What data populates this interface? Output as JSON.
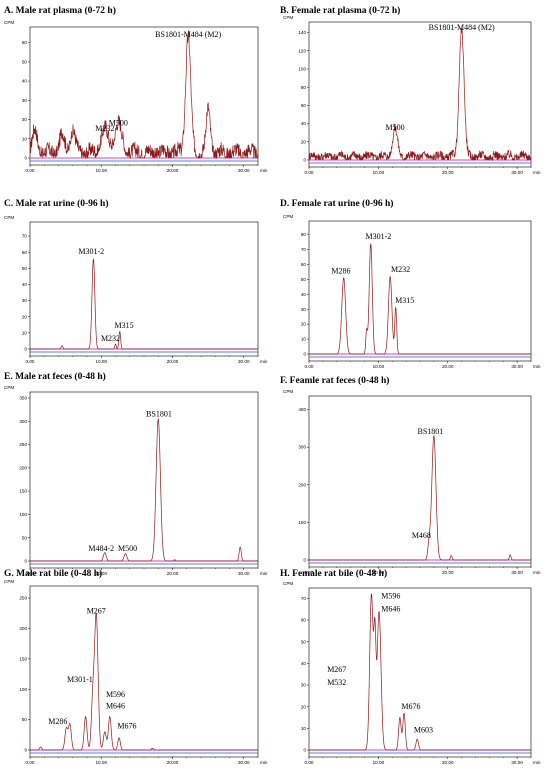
{
  "colors": {
    "trace": "#8b1a1a",
    "baseline_magenta": "#c000c0",
    "baseline_blue": "#3050c0",
    "axis": "#000000"
  },
  "chart_data": [
    {
      "type": "line",
      "title": "A. Male rat plasma (0-72 h)",
      "ylabel": "CPM",
      "xlabel": "min",
      "xlim": [
        0,
        32
      ],
      "ylim": [
        0,
        65
      ],
      "yticks": [
        0,
        10,
        20,
        30,
        40,
        50,
        60
      ],
      "xticks": [
        0,
        10,
        20,
        30
      ],
      "xtick_labels": [
        "0.00",
        "10.00",
        "20.00",
        "30.00"
      ],
      "noise": {
        "level": 3,
        "amplitude": 4
      },
      "peaks": [
        {
          "rt": 0.7,
          "height": 11,
          "width": 0.35
        },
        {
          "rt": 4.5,
          "height": 9,
          "width": 0.35
        },
        {
          "rt": 6.0,
          "height": 11,
          "width": 0.35
        },
        {
          "rt": 10.5,
          "height": 12,
          "width": 0.5
        },
        {
          "rt": 12.4,
          "height": 15,
          "width": 0.5
        },
        {
          "rt": 22.2,
          "height": 61,
          "width": 0.35
        },
        {
          "rt": 25.0,
          "height": 22,
          "width": 0.3
        }
      ],
      "annotations": [
        {
          "label": "M232",
          "rt": 10.5,
          "value": 14
        },
        {
          "label": "M500",
          "rt": 12.4,
          "value": 17
        },
        {
          "label": "BS1801-M484 (M2)",
          "rt": 22.2,
          "value": 63
        }
      ]
    },
    {
      "type": "line",
      "title": "B. Female rat plasma (0-72 h)",
      "ylabel": "CPM",
      "xlabel": "min",
      "xlim": [
        0,
        32
      ],
      "ylim": [
        0,
        145
      ],
      "yticks": [
        0,
        20,
        40,
        60,
        80,
        100,
        120,
        140
      ],
      "xticks": [
        0,
        10,
        20,
        30
      ],
      "xtick_labels": [
        "0.00",
        "10.00",
        "20.00",
        "30.00"
      ],
      "noise": {
        "level": 4,
        "amplitude": 5
      },
      "peaks": [
        {
          "rt": 12.4,
          "height": 30,
          "width": 0.35
        },
        {
          "rt": 22.0,
          "height": 140,
          "width": 0.35
        }
      ],
      "annotations": [
        {
          "label": "M500",
          "rt": 12.4,
          "value": 33
        },
        {
          "label": "BS1801-M484 (M2)",
          "rt": 22.0,
          "value": 143
        }
      ]
    },
    {
      "type": "line",
      "title": "C. Male rat urine (0-96 h)",
      "ylabel": "CPM",
      "xlabel": "min",
      "xlim": [
        0,
        32
      ],
      "ylim": [
        0,
        75
      ],
      "yticks": [
        0,
        10,
        20,
        30,
        40,
        50,
        60,
        70
      ],
      "xticks": [
        0,
        10,
        20,
        30
      ],
      "xtick_labels": [
        "0.00",
        "10.00",
        "20.00",
        "30.00"
      ],
      "noise": {
        "level": 0,
        "amplitude": 0
      },
      "peaks": [
        {
          "rt": 4.5,
          "height": 2,
          "width": 0.12
        },
        {
          "rt": 8.9,
          "height": 56,
          "width": 0.2
        },
        {
          "rt": 12.0,
          "height": 3,
          "width": 0.1
        },
        {
          "rt": 12.6,
          "height": 11,
          "width": 0.12
        }
      ],
      "annotations": [
        {
          "label": "M301-2",
          "rt": 8.6,
          "value": 59
        },
        {
          "label": "M232",
          "rt": 11.3,
          "value": 5
        },
        {
          "label": "M315",
          "rt": 13.2,
          "value": 13
        }
      ]
    },
    {
      "type": "line",
      "title": "D. Female rat urine (0-96 h)",
      "ylabel": "CPM",
      "xlabel": "min",
      "xlim": [
        0,
        32
      ],
      "ylim": [
        0,
        85
      ],
      "yticks": [
        0,
        10,
        20,
        30,
        40,
        50,
        60,
        70,
        80
      ],
      "xticks": [
        0,
        10,
        20,
        30
      ],
      "xtick_labels": [
        "0.00",
        "10.00",
        "20.00",
        "30.00"
      ],
      "noise": {
        "level": 0,
        "amplitude": 0
      },
      "peaks": [
        {
          "rt": 5.0,
          "height": 51,
          "width": 0.28
        },
        {
          "rt": 8.3,
          "height": 15,
          "width": 0.12
        },
        {
          "rt": 8.9,
          "height": 74,
          "width": 0.22
        },
        {
          "rt": 11.7,
          "height": 52,
          "width": 0.25
        },
        {
          "rt": 12.5,
          "height": 31,
          "width": 0.14
        }
      ],
      "annotations": [
        {
          "label": "M286",
          "rt": 4.6,
          "value": 54
        },
        {
          "label": "M301-2",
          "rt": 10.0,
          "value": 77
        },
        {
          "label": "M232",
          "rt": 13.2,
          "value": 55
        },
        {
          "label": "M315",
          "rt": 13.8,
          "value": 34
        }
      ]
    },
    {
      "type": "line",
      "title": "E. Male rat feces (0-48 h)",
      "ylabel": "CPM",
      "xlabel": "min",
      "xlim": [
        0,
        32
      ],
      "ylim": [
        0,
        350
      ],
      "yticks": [
        0,
        50,
        100,
        150,
        200,
        250,
        300,
        350
      ],
      "xticks": [
        0,
        10,
        20,
        30
      ],
      "xtick_labels": [
        "0.00",
        "10.00",
        "20.00",
        "30.00"
      ],
      "noise": {
        "level": 0,
        "amplitude": 0
      },
      "peaks": [
        {
          "rt": 10.5,
          "height": 18,
          "width": 0.2
        },
        {
          "rt": 13.4,
          "height": 16,
          "width": 0.2
        },
        {
          "rt": 18.0,
          "height": 305,
          "width": 0.3
        },
        {
          "rt": 20.3,
          "height": 3,
          "width": 0.1
        },
        {
          "rt": 29.5,
          "height": 30,
          "width": 0.15
        }
      ],
      "annotations": [
        {
          "label": "M484-2",
          "rt": 10.0,
          "value": 22
        },
        {
          "label": "M500",
          "rt": 13.7,
          "value": 22
        },
        {
          "label": "BS1801",
          "rt": 18.1,
          "value": 310
        }
      ]
    },
    {
      "type": "line",
      "title": "F. Feamle rat feces (0-48 h)",
      "ylabel": "CPM",
      "xlabel": "min",
      "xlim": [
        0,
        32
      ],
      "ylim": [
        0,
        420
      ],
      "yticks": [
        0,
        100,
        200,
        300,
        400
      ],
      "xticks": [
        0,
        10,
        20,
        30
      ],
      "xtick_labels": [
        "0.00",
        "10.00",
        "20.00",
        "30.00"
      ],
      "noise": {
        "level": 0,
        "amplitude": 0
      },
      "peaks": [
        {
          "rt": 17.3,
          "height": 40,
          "width": 0.18
        },
        {
          "rt": 18.0,
          "height": 330,
          "width": 0.3
        },
        {
          "rt": 20.5,
          "height": 12,
          "width": 0.12
        },
        {
          "rt": 29.0,
          "height": 14,
          "width": 0.12
        }
      ],
      "annotations": [
        {
          "label": "M468",
          "rt": 16.2,
          "value": 58
        },
        {
          "label": "BS1801",
          "rt": 17.5,
          "value": 335
        }
      ]
    },
    {
      "type": "line",
      "title": "G. Male rat bile (0-48 h)",
      "ylabel": "CPM",
      "xlabel": "min",
      "xlim": [
        0,
        32
      ],
      "ylim": [
        0,
        260
      ],
      "yticks": [
        0,
        50,
        100,
        150,
        200,
        250
      ],
      "xticks": [
        0,
        10,
        20,
        30
      ],
      "xtick_labels": [
        "0.00",
        "10.00",
        "20.00",
        "30.00"
      ],
      "noise": {
        "level": 0,
        "amplitude": 0
      },
      "peaks": [
        {
          "rt": 1.5,
          "height": 5,
          "width": 0.15
        },
        {
          "rt": 5.1,
          "height": 35,
          "width": 0.2
        },
        {
          "rt": 5.6,
          "height": 42,
          "width": 0.2
        },
        {
          "rt": 7.8,
          "height": 55,
          "width": 0.2
        },
        {
          "rt": 8.8,
          "height": 75,
          "width": 0.2
        },
        {
          "rt": 9.3,
          "height": 222,
          "width": 0.25
        },
        {
          "rt": 10.5,
          "height": 30,
          "width": 0.2
        },
        {
          "rt": 11.2,
          "height": 55,
          "width": 0.2
        },
        {
          "rt": 12.5,
          "height": 20,
          "width": 0.18
        },
        {
          "rt": 17.2,
          "height": 3,
          "width": 0.15
        }
      ],
      "annotations": [
        {
          "label": "M267",
          "rt": 9.3,
          "value": 225
        },
        {
          "label": "M301-1",
          "rt": 7.0,
          "value": 112
        },
        {
          "label": "M596",
          "rt": 12.0,
          "value": 87
        },
        {
          "label": "M646",
          "rt": 12.0,
          "value": 68
        },
        {
          "label": "M286",
          "rt": 3.9,
          "value": 43
        },
        {
          "label": "M676",
          "rt": 13.6,
          "value": 35
        }
      ]
    },
    {
      "type": "line",
      "title": "H. Female rat bile (0-48 h)",
      "ylabel": "CPM",
      "xlabel": "min",
      "xlim": [
        0,
        32
      ],
      "ylim": [
        0,
        72
      ],
      "yticks": [
        0,
        10,
        20,
        30,
        40,
        50,
        60,
        70
      ],
      "xticks": [
        0,
        10,
        20,
        30
      ],
      "xtick_labels": [
        "0.00",
        "10.00",
        "20.00",
        "30.00"
      ],
      "noise": {
        "level": 0,
        "amplitude": 0
      },
      "peaks": [
        {
          "rt": 9.0,
          "height": 72,
          "width": 0.25
        },
        {
          "rt": 9.5,
          "height": 45,
          "width": 0.15
        },
        {
          "rt": 10.1,
          "height": 64,
          "width": 0.28
        },
        {
          "rt": 13.1,
          "height": 15,
          "width": 0.18
        },
        {
          "rt": 13.7,
          "height": 17,
          "width": 0.18
        },
        {
          "rt": 15.6,
          "height": 5,
          "width": 0.18
        }
      ],
      "annotations": [
        {
          "label": "M596",
          "rt": 11.8,
          "value": 70
        },
        {
          "label": "M646",
          "rt": 11.8,
          "value": 64
        },
        {
          "label": "M267",
          "rt": 4.0,
          "value": 36
        },
        {
          "label": "M532",
          "rt": 4.0,
          "value": 30
        },
        {
          "label": "M676",
          "rt": 14.7,
          "value": 19
        },
        {
          "label": "M603",
          "rt": 16.5,
          "value": 8
        }
      ]
    }
  ]
}
